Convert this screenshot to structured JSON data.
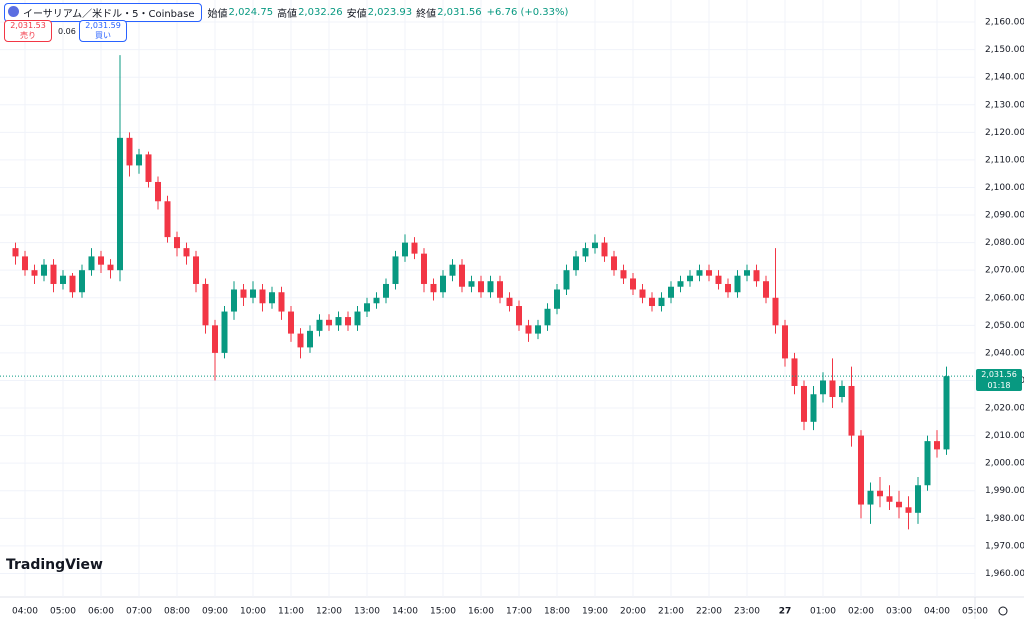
{
  "header": {
    "symbol": "イーサリアム／米ドル・5・Coinbase",
    "ohlc": [
      [
        "始値",
        "2,024.75"
      ],
      [
        "高値",
        "2,032.26"
      ],
      [
        "安値",
        "2,023.93"
      ],
      [
        "終値",
        "2,031.56"
      ]
    ],
    "change": "+6.76 (+0.33%)",
    "sell_price": "2,031.53",
    "sell": "売り",
    "spread": "0.06",
    "buy_price": "2,031.59",
    "buy": "買い"
  },
  "logo": "TradingView",
  "chart_data": {
    "type": "candlestick",
    "up_color": "#089981",
    "down_color": "#f23645",
    "grid": true,
    "x": [
      "03:45",
      "04:00",
      "04:15",
      "04:30",
      "04:45",
      "05:00",
      "05:15",
      "05:30",
      "05:45",
      "06:00",
      "06:15",
      "06:30",
      "06:45",
      "07:00",
      "07:15",
      "07:30",
      "07:45",
      "08:00",
      "08:15",
      "08:30",
      "08:45",
      "09:00",
      "09:15",
      "09:30",
      "09:45",
      "10:00",
      "10:15",
      "10:30",
      "10:45",
      "11:00",
      "11:15",
      "11:30",
      "11:45",
      "12:00",
      "12:15",
      "12:30",
      "12:45",
      "13:00",
      "13:15",
      "13:30",
      "13:45",
      "14:00",
      "14:15",
      "14:30",
      "14:45",
      "15:00",
      "15:15",
      "15:30",
      "15:45",
      "16:00",
      "16:15",
      "16:30",
      "16:45",
      "17:00",
      "17:15",
      "17:30",
      "17:45",
      "18:00",
      "18:15",
      "18:30",
      "18:45",
      "19:00",
      "19:15",
      "19:30",
      "19:45",
      "20:00",
      "20:15",
      "20:30",
      "20:45",
      "21:00",
      "21:15",
      "21:30",
      "21:45",
      "22:00",
      "22:15",
      "22:30",
      "22:45",
      "23:00",
      "23:15",
      "23:30",
      "23:45",
      "00:00",
      "00:15",
      "00:30",
      "00:45",
      "01:00",
      "01:15",
      "01:30",
      "01:45",
      "02:00",
      "02:15",
      "02:30",
      "02:45",
      "03:00",
      "03:15",
      "03:30",
      "03:45",
      "04:00",
      "04:15"
    ],
    "open": [
      2078,
      2075,
      2070,
      2068,
      2072,
      2065,
      2068,
      2062,
      2070,
      2075,
      2072,
      2070,
      2118,
      2108,
      2112,
      2102,
      2095,
      2082,
      2078,
      2075,
      2065,
      2050,
      2040,
      2055,
      2063,
      2060,
      2063,
      2058,
      2062,
      2055,
      2047,
      2042,
      2048,
      2052,
      2050,
      2053,
      2050,
      2055,
      2058,
      2060,
      2065,
      2075,
      2080,
      2076,
      2065,
      2062,
      2068,
      2072,
      2064,
      2066,
      2062,
      2066,
      2060,
      2057,
      2050,
      2047,
      2050,
      2056,
      2063,
      2070,
      2075,
      2078,
      2080,
      2075,
      2070,
      2067,
      2063,
      2060,
      2057,
      2060,
      2064,
      2066,
      2068,
      2070,
      2068,
      2065,
      2062,
      2068,
      2070,
      2066,
      2060,
      2050,
      2038,
      2028,
      2015,
      2025,
      2030,
      2024,
      2028,
      2010,
      1985,
      1990,
      1988,
      1986,
      1984,
      1982,
      1992,
      2008,
      2005
    ],
    "high": [
      2080,
      2077,
      2072,
      2074,
      2074,
      2070,
      2069,
      2072,
      2078,
      2077,
      2074,
      2148,
      2120,
      2114,
      2113,
      2104,
      2097,
      2084,
      2080,
      2077,
      2067,
      2052,
      2057,
      2066,
      2065,
      2066,
      2065,
      2064,
      2064,
      2057,
      2049,
      2050,
      2054,
      2054,
      2055,
      2055,
      2057,
      2060,
      2062,
      2067,
      2077,
      2083,
      2082,
      2078,
      2067,
      2070,
      2074,
      2074,
      2068,
      2068,
      2068,
      2068,
      2062,
      2059,
      2052,
      2052,
      2058,
      2065,
      2072,
      2077,
      2080,
      2083,
      2082,
      2077,
      2072,
      2069,
      2065,
      2062,
      2062,
      2066,
      2068,
      2070,
      2072,
      2072,
      2070,
      2067,
      2070,
      2072,
      2072,
      2068,
      2078,
      2052,
      2040,
      2030,
      2028,
      2033,
      2038,
      2030,
      2035,
      2012,
      1993,
      1995,
      1992,
      1990,
      1988,
      1995,
      2010,
      2012,
      2035
    ],
    "low": [
      2072,
      2068,
      2065,
      2066,
      2062,
      2063,
      2060,
      2060,
      2068,
      2069,
      2067,
      2066,
      2104,
      2105,
      2100,
      2092,
      2080,
      2075,
      2072,
      2062,
      2047,
      2030,
      2038,
      2052,
      2057,
      2058,
      2055,
      2056,
      2052,
      2044,
      2038,
      2040,
      2046,
      2048,
      2048,
      2048,
      2048,
      2053,
      2056,
      2058,
      2063,
      2073,
      2074,
      2062,
      2059,
      2060,
      2066,
      2062,
      2062,
      2060,
      2060,
      2058,
      2055,
      2048,
      2044,
      2045,
      2048,
      2054,
      2061,
      2068,
      2073,
      2076,
      2073,
      2068,
      2065,
      2061,
      2058,
      2055,
      2055,
      2058,
      2062,
      2064,
      2066,
      2066,
      2063,
      2060,
      2060,
      2066,
      2064,
      2058,
      2047,
      2035,
      2025,
      2012,
      2012,
      2022,
      2020,
      2022,
      2006,
      1980,
      1978,
      1984,
      1983,
      1980,
      1976,
      1978,
      1990,
      2002,
      2003
    ],
    "close": [
      2075,
      2070,
      2068,
      2072,
      2065,
      2068,
      2062,
      2070,
      2075,
      2072,
      2070,
      2118,
      2108,
      2112,
      2102,
      2095,
      2082,
      2078,
      2075,
      2065,
      2050,
      2040,
      2055,
      2063,
      2060,
      2063,
      2058,
      2062,
      2055,
      2047,
      2042,
      2048,
      2052,
      2050,
      2053,
      2050,
      2055,
      2058,
      2060,
      2065,
      2075,
      2080,
      2076,
      2065,
      2062,
      2068,
      2072,
      2064,
      2066,
      2062,
      2066,
      2060,
      2057,
      2050,
      2047,
      2050,
      2056,
      2063,
      2070,
      2075,
      2078,
      2080,
      2075,
      2070,
      2067,
      2063,
      2060,
      2057,
      2060,
      2064,
      2066,
      2068,
      2070,
      2068,
      2065,
      2062,
      2068,
      2070,
      2066,
      2060,
      2050,
      2038,
      2028,
      2015,
      2025,
      2030,
      2024,
      2028,
      2010,
      1985,
      1990,
      1988,
      1986,
      1984,
      1982,
      1992,
      2008,
      2005,
      2031.56
    ],
    "last_price_label": "2,031.56",
    "countdown": "01:18",
    "ylim": [
      1954,
      2168
    ],
    "yticks": [
      {
        "value": 1960,
        "label": "1,960.00"
      },
      {
        "value": 1970,
        "label": "1,970.00"
      },
      {
        "value": 1980,
        "label": "1,980.00"
      },
      {
        "value": 1990,
        "label": "1,990.00"
      },
      {
        "value": 2000,
        "label": "2,000.00"
      },
      {
        "value": 2010,
        "label": "2,010.00"
      },
      {
        "value": 2020,
        "label": "2,020.00"
      },
      {
        "value": 2030,
        "label": "2,030.00"
      },
      {
        "value": 2040,
        "label": "2,040.00"
      },
      {
        "value": 2050,
        "label": "2,050.00"
      },
      {
        "value": 2060,
        "label": "2,060.00"
      },
      {
        "value": 2070,
        "label": "2,070.00"
      },
      {
        "value": 2080,
        "label": "2,080.00"
      },
      {
        "value": 2090,
        "label": "2,090.00"
      },
      {
        "value": 2100,
        "label": "2,100.00"
      },
      {
        "value": 2110,
        "label": "2,110.00"
      },
      {
        "value": 2120,
        "label": "2,120.00"
      },
      {
        "value": 2130,
        "label": "2,130.00"
      },
      {
        "value": 2140,
        "label": "2,140.00"
      },
      {
        "value": 2150,
        "label": "2,150.00"
      },
      {
        "value": 2160,
        "label": "2,160.00"
      }
    ],
    "xticks": [
      "04:00",
      "05:00",
      "06:00",
      "07:00",
      "08:00",
      "09:00",
      "10:00",
      "11:00",
      "12:00",
      "13:00",
      "14:00",
      "15:00",
      "16:00",
      "17:00",
      "18:00",
      "19:00",
      "20:00",
      "21:00",
      "22:00",
      "23:00",
      {
        "value": "00:00",
        "label": "27"
      },
      "01:00",
      "02:00",
      "03:00",
      "04:00",
      "05:00"
    ]
  }
}
